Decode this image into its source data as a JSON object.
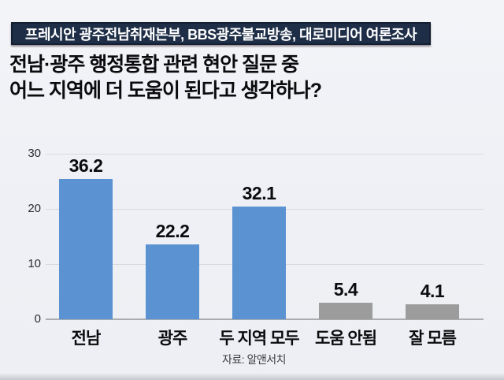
{
  "banner": {
    "text": "프레시안 광주전남취재본부, BBS광주불교방송, 대로미디어 여론조사",
    "bg_color": "#1e2e47",
    "text_color": "#ffffff"
  },
  "title": {
    "line1": "전남·광주 행정통합 관련 현안 질문 중",
    "line2": "어느 지역에 더 도움이 된다고 생각하나?"
  },
  "source": "자료: 알앤서치",
  "chart_data": {
    "type": "bar",
    "categories": [
      "전남",
      "광주",
      "두 지역 모두",
      "도움 안됨",
      "잘 모름"
    ],
    "values": [
      36.2,
      22.2,
      32.1,
      5.4,
      4.1
    ],
    "value_labels": [
      "36.2",
      "22.2",
      "32.1",
      "5.4",
      "4.1"
    ],
    "bar_colors": [
      "#5b93d2",
      "#5b93d2",
      "#5b93d2",
      "#9c9c9c",
      "#9c9c9c"
    ],
    "yticks": [
      0,
      10,
      20,
      30
    ],
    "ylim": [
      0,
      30
    ],
    "grid": true,
    "legend": "none",
    "title": "전남·광주 행정통합 관련 현안 질문 중 어느 지역에 더 도움이 된다고 생각하나?",
    "xlabel": "",
    "ylabel": "",
    "drawn_axis_units": [
      25.4,
      13.6,
      20.4,
      3.0,
      2.7
    ]
  }
}
